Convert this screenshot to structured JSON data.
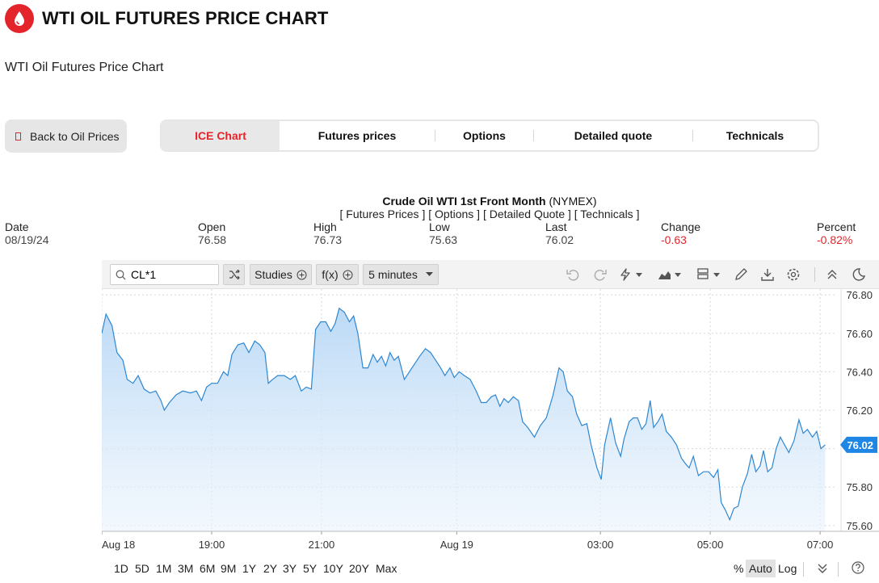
{
  "header": {
    "title": "WTI OIL FUTURES PRICE CHART",
    "logo_icon": "oil-drop-icon",
    "brand_color": "#e3242b"
  },
  "subtitle": "WTI Oil Futures Price Chart",
  "back_button": {
    "label": "Back to Oil Prices"
  },
  "tabs": [
    {
      "label": "ICE Chart",
      "active": true
    },
    {
      "label": "Futures prices",
      "active": false
    },
    {
      "label": "Options",
      "active": false
    },
    {
      "label": "Detailed quote",
      "active": false
    },
    {
      "label": "Technicals",
      "active": false
    }
  ],
  "quote": {
    "title": "Crude Oil WTI 1st Front Month",
    "exchange": "(NYMEX)",
    "links": [
      "[ Futures Prices ]",
      "[ Options ]",
      "[ Detailed Quote ]",
      "[ Technicals ]"
    ],
    "stats": [
      {
        "label": "Date",
        "value": "08/19/24"
      },
      {
        "label": "Open",
        "value": "76.58"
      },
      {
        "label": "High",
        "value": "76.73"
      },
      {
        "label": "Low",
        "value": "75.63"
      },
      {
        "label": "Last",
        "value": "76.02"
      },
      {
        "label": "Change",
        "value": "-0.63"
      },
      {
        "label": "Percent",
        "value": "-0.82%"
      }
    ]
  },
  "toolbar": {
    "symbol": "CL*1",
    "studies_label": "Studies",
    "fx_label": "f(x)",
    "interval_label": "5 minutes",
    "icons": [
      "compare-icon",
      "undo-icon",
      "redo-icon",
      "drawing-tool-icon",
      "chart-type-icon",
      "layout-icon",
      "pencil-icon",
      "download-icon",
      "settings-icon",
      "collapse-icon",
      "dark-mode-icon"
    ]
  },
  "range_buttons": [
    "1D",
    "5D",
    "1M",
    "3M",
    "6M",
    "9M",
    "1Y",
    "2Y",
    "3Y",
    "5Y",
    "10Y",
    "20Y",
    "Max"
  ],
  "scale_options": {
    "percent": "%",
    "auto": "Auto",
    "log": "Log"
  },
  "chart_data": {
    "type": "area",
    "symbol": "CL*1",
    "interval": "5 minutes",
    "last_price_flag": "76.02",
    "y_ticks": [
      "76.80",
      "76.60",
      "76.40",
      "76.20",
      "76.00",
      "75.80",
      "75.60"
    ],
    "ylim": [
      75.57,
      76.83
    ],
    "x_ticks": [
      {
        "label": "Aug 18",
        "t": 0
      },
      {
        "label": "19:00",
        "t": 13
      },
      {
        "label": "21:00",
        "t": 26
      },
      {
        "label": "Aug 19",
        "t": 42
      },
      {
        "label": "03:00",
        "t": 59
      },
      {
        "label": "05:00",
        "t": 72
      },
      {
        "label": "07:00",
        "t": 85
      }
    ],
    "x_span": [
      0,
      87
    ],
    "series": [
      {
        "values": [
          [
            0,
            76.6
          ],
          [
            0.5,
            76.7
          ],
          [
            1.2,
            76.64
          ],
          [
            1.8,
            76.5
          ],
          [
            2.5,
            76.46
          ],
          [
            3,
            76.36
          ],
          [
            3.7,
            76.34
          ],
          [
            4.3,
            76.38
          ],
          [
            5,
            76.31
          ],
          [
            5.7,
            76.29
          ],
          [
            6.4,
            76.3
          ],
          [
            7,
            76.25
          ],
          [
            7.4,
            76.2
          ],
          [
            8,
            76.24
          ],
          [
            8.8,
            76.28
          ],
          [
            9.6,
            76.3
          ],
          [
            10.5,
            76.29
          ],
          [
            11.2,
            76.3
          ],
          [
            11.8,
            76.25
          ],
          [
            12.4,
            76.32
          ],
          [
            13,
            76.34
          ],
          [
            13.7,
            76.34
          ],
          [
            14.4,
            76.4
          ],
          [
            14.9,
            76.38
          ],
          [
            15.4,
            76.49
          ],
          [
            16.1,
            76.54
          ],
          [
            16.8,
            76.55
          ],
          [
            17.4,
            76.5
          ],
          [
            18.1,
            76.56
          ],
          [
            18.7,
            76.54
          ],
          [
            19.3,
            76.5
          ],
          [
            19.7,
            76.34
          ],
          [
            20.2,
            76.36
          ],
          [
            20.8,
            76.38
          ],
          [
            21.6,
            76.38
          ],
          [
            22.3,
            76.36
          ],
          [
            22.9,
            76.38
          ],
          [
            23.6,
            76.3
          ],
          [
            24.2,
            76.32
          ],
          [
            24.8,
            76.31
          ],
          [
            25.3,
            76.62
          ],
          [
            25.9,
            76.66
          ],
          [
            26.5,
            76.66
          ],
          [
            27.1,
            76.61
          ],
          [
            27.6,
            76.65
          ],
          [
            28.1,
            76.73
          ],
          [
            28.7,
            76.71
          ],
          [
            29.3,
            76.66
          ],
          [
            29.8,
            76.69
          ],
          [
            30.3,
            76.6
          ],
          [
            30.9,
            76.42
          ],
          [
            31.5,
            76.42
          ],
          [
            32.1,
            76.49
          ],
          [
            32.6,
            76.45
          ],
          [
            33.1,
            76.48
          ],
          [
            33.6,
            76.43
          ],
          [
            34.1,
            76.5
          ],
          [
            34.6,
            76.46
          ],
          [
            35.1,
            76.48
          ],
          [
            35.8,
            76.36
          ],
          [
            36.4,
            76.4
          ],
          [
            37,
            76.44
          ],
          [
            37.6,
            76.48
          ],
          [
            38.3,
            76.52
          ],
          [
            38.9,
            76.5
          ],
          [
            39.5,
            76.46
          ],
          [
            40.1,
            76.42
          ],
          [
            40.6,
            76.38
          ],
          [
            41.2,
            76.42
          ],
          [
            41.7,
            76.37
          ],
          [
            42.3,
            76.4
          ],
          [
            42.9,
            76.38
          ],
          [
            43.6,
            76.36
          ],
          [
            44.3,
            76.3
          ],
          [
            44.9,
            76.24
          ],
          [
            45.5,
            76.24
          ],
          [
            46.1,
            76.27
          ],
          [
            46.6,
            76.28
          ],
          [
            47.1,
            76.22
          ],
          [
            47.6,
            76.26
          ],
          [
            48.1,
            76.24
          ],
          [
            48.7,
            76.27
          ],
          [
            49.3,
            76.25
          ],
          [
            49.8,
            76.14
          ],
          [
            50.4,
            76.11
          ],
          [
            51.2,
            76.06
          ],
          [
            51.9,
            76.12
          ],
          [
            52.6,
            76.16
          ],
          [
            53.4,
            76.28
          ],
          [
            54.1,
            76.42
          ],
          [
            54.6,
            76.4
          ],
          [
            55.1,
            76.3
          ],
          [
            55.7,
            76.27
          ],
          [
            56.2,
            76.18
          ],
          [
            56.8,
            76.12
          ],
          [
            57.4,
            76.13
          ],
          [
            57.9,
            76.02
          ],
          [
            58.6,
            75.9
          ],
          [
            59.1,
            75.84
          ],
          [
            59.5,
            76.02
          ],
          [
            60.2,
            76.16
          ],
          [
            60.8,
            76.03
          ],
          [
            61.4,
            75.96
          ],
          [
            61.8,
            76.05
          ],
          [
            62.4,
            76.14
          ],
          [
            62.9,
            76.16
          ],
          [
            63.4,
            76.16
          ],
          [
            63.9,
            76.1
          ],
          [
            64.4,
            76.13
          ],
          [
            64.9,
            76.25
          ],
          [
            65.3,
            76.11
          ],
          [
            65.8,
            76.14
          ],
          [
            66.3,
            76.18
          ],
          [
            66.8,
            76.09
          ],
          [
            67.4,
            76.06
          ],
          [
            68,
            76.02
          ],
          [
            68.6,
            75.95
          ],
          [
            69.1,
            75.92
          ],
          [
            69.5,
            75.9
          ],
          [
            70,
            75.96
          ],
          [
            70.6,
            75.86
          ],
          [
            71.2,
            75.88
          ],
          [
            71.8,
            75.88
          ],
          [
            72.4,
            75.85
          ],
          [
            72.9,
            75.89
          ],
          [
            73.3,
            75.72
          ],
          [
            73.8,
            75.68
          ],
          [
            74.3,
            75.63
          ],
          [
            74.8,
            75.69
          ],
          [
            75.3,
            75.7
          ],
          [
            75.8,
            75.8
          ],
          [
            76.4,
            75.87
          ],
          [
            76.9,
            75.97
          ],
          [
            77.4,
            75.88
          ],
          [
            77.9,
            75.91
          ],
          [
            78.3,
            75.99
          ],
          [
            78.8,
            75.88
          ],
          [
            79.3,
            75.9
          ],
          [
            79.8,
            76.0
          ],
          [
            80.3,
            76.06
          ],
          [
            80.8,
            76.02
          ],
          [
            81.3,
            75.98
          ],
          [
            81.9,
            76.04
          ],
          [
            82.5,
            76.15
          ],
          [
            83,
            76.08
          ],
          [
            83.5,
            76.1
          ],
          [
            84.1,
            76.06
          ],
          [
            84.6,
            76.09
          ],
          [
            85.1,
            76.0
          ],
          [
            85.6,
            76.02
          ]
        ]
      }
    ],
    "line_color": "#2e87d1",
    "fill_color": "#cfe4f8"
  }
}
